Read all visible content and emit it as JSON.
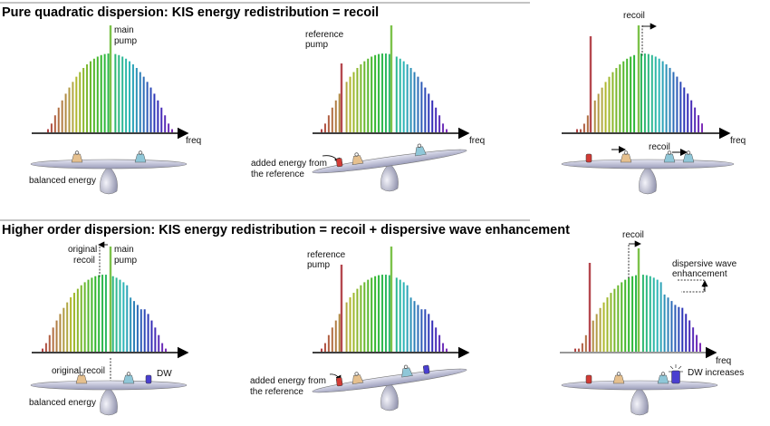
{
  "sections": [
    {
      "title": "Pure quadratic dispersion: KIS energy redistribution = recoil",
      "panels": [
        {
          "pump_label": [
            "main",
            "pump"
          ],
          "axis_label": "freq",
          "caption": "balanced energy"
        },
        {
          "ref_label": [
            "reference",
            "pump"
          ],
          "caption": [
            "added energy from",
            "the reference"
          ]
        },
        {
          "recoil_label": "recoil",
          "axis_label": "freq",
          "weight_recoil_label": "recoil"
        }
      ]
    },
    {
      "title": "Higher order dispersion: KIS energy redistribution = recoil + dispersive wave enhancement",
      "panels": [
        {
          "recoil_label": [
            "original",
            "recoil"
          ],
          "pump_label": [
            "main",
            "pump"
          ],
          "caption": "balanced energy",
          "weight_recoil_label": "original recoil",
          "dw_label": "DW"
        },
        {
          "ref_label": [
            "reference",
            "pump"
          ],
          "caption": [
            "added energy from",
            "the reference"
          ]
        },
        {
          "recoil_label": "recoil",
          "dw_enh_label": [
            "dispersive wave",
            "enhancement"
          ],
          "axis_label": "freq",
          "dw_label": "DW increases"
        }
      ]
    }
  ],
  "colors": {
    "pump": "#7cc24a",
    "reference": "#b5484f",
    "beam": "#c7c9e0",
    "weight_left": "#e6c08e",
    "weight_right": "#8fc7d8",
    "weight_red": "#d23b35",
    "weight_dw": "#4a3fd0"
  }
}
